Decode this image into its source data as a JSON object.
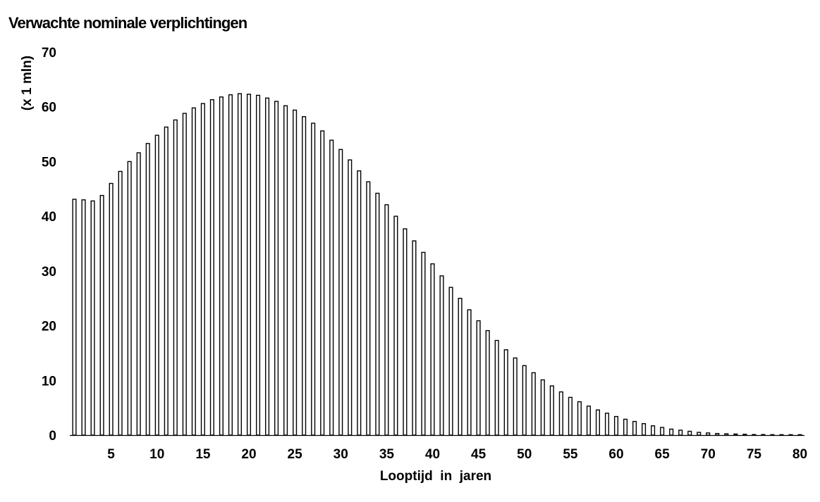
{
  "chart_data": {
    "type": "bar",
    "title": "Verwachte nominale verplichtingen",
    "ylabel": "(x 1 mln)",
    "xlabel": "Looptijd  in  jaren",
    "ylim": [
      0,
      70
    ],
    "yticks": [
      0,
      10,
      20,
      30,
      40,
      50,
      60,
      70
    ],
    "xticks": [
      5,
      10,
      15,
      20,
      25,
      30,
      35,
      40,
      45,
      50,
      55,
      60,
      65,
      70,
      75,
      80
    ],
    "grid": false,
    "legend": "none",
    "bar_fill": "#ffffff",
    "bar_stroke": "#000000",
    "categories": [
      1,
      2,
      3,
      4,
      5,
      6,
      7,
      8,
      9,
      10,
      11,
      12,
      13,
      14,
      15,
      16,
      17,
      18,
      19,
      20,
      21,
      22,
      23,
      24,
      25,
      26,
      27,
      28,
      29,
      30,
      31,
      32,
      33,
      34,
      35,
      36,
      37,
      38,
      39,
      40,
      41,
      42,
      43,
      44,
      45,
      46,
      47,
      48,
      49,
      50,
      51,
      52,
      53,
      54,
      55,
      56,
      57,
      58,
      59,
      60,
      61,
      62,
      63,
      64,
      65,
      66,
      67,
      68,
      69,
      70,
      71,
      72,
      73,
      74,
      75,
      76,
      77,
      78,
      79,
      80
    ],
    "values": [
      43.1,
      43.0,
      42.8,
      43.8,
      46.0,
      48.2,
      50.0,
      51.6,
      53.3,
      54.8,
      56.3,
      57.6,
      58.8,
      59.8,
      60.6,
      61.3,
      61.8,
      62.2,
      62.4,
      62.3,
      62.1,
      61.6,
      61.0,
      60.2,
      59.4,
      58.2,
      57.0,
      55.6,
      53.9,
      52.2,
      50.3,
      48.3,
      46.3,
      44.2,
      42.1,
      40.0,
      37.7,
      35.5,
      33.4,
      31.3,
      29.1,
      27.0,
      25.0,
      22.9,
      20.9,
      19.1,
      17.3,
      15.6,
      14.1,
      12.7,
      11.4,
      10.1,
      9.0,
      7.9,
      6.9,
      6.1,
      5.3,
      4.6,
      4.0,
      3.4,
      2.9,
      2.5,
      2.1,
      1.7,
      1.4,
      1.1,
      0.9,
      0.7,
      0.5,
      0.4,
      0.3,
      0.25,
      0.2,
      0.15,
      0.1,
      0.1,
      0.08,
      0.06,
      0.05,
      0.04
    ]
  }
}
